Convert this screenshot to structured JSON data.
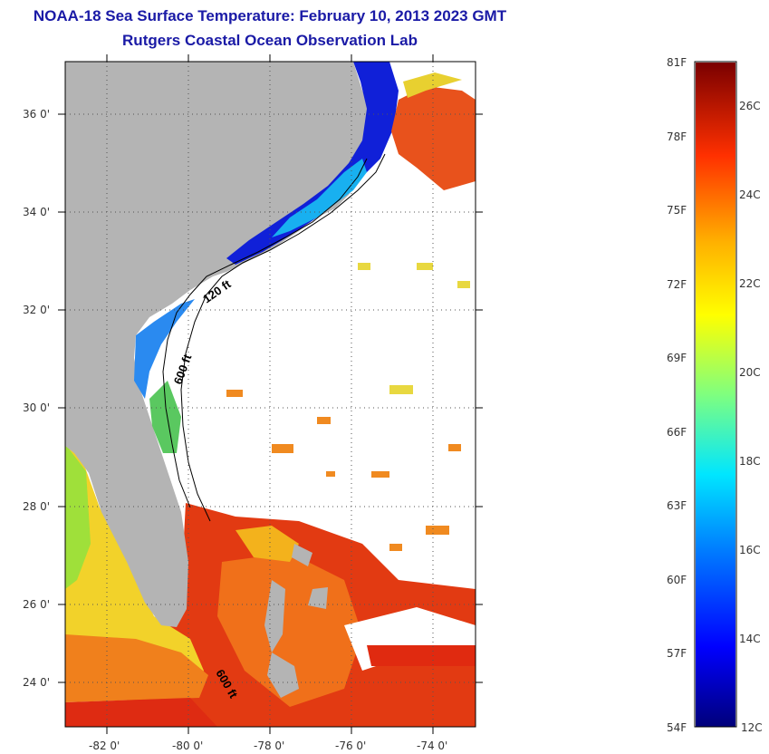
{
  "header": {
    "title": "NOAA-18 Sea Surface Temperature:  February 10, 2013 2023 GMT",
    "subtitle": "Rutgers Coastal Ocean Observation Lab"
  },
  "map": {
    "lat_labels": [
      "36 0'",
      "34 0'",
      "32 0'",
      "30 0'",
      "28 0'",
      "26 0'",
      "24 0'"
    ],
    "lon_labels": [
      "-82 0'",
      "-80 0'",
      "-78 0'",
      "-76 0'",
      "-74 0'"
    ],
    "contour_labels": [
      "120 ft",
      "600 ft",
      "600 ft"
    ]
  },
  "colorbar": {
    "f_labels": [
      "81F",
      "78F",
      "75F",
      "72F",
      "69F",
      "66F",
      "63F",
      "60F",
      "57F",
      "54F"
    ],
    "c_labels": [
      "26C",
      "24C",
      "22C",
      "20C",
      "18C",
      "16C",
      "14C",
      "12C"
    ]
  },
  "colors": {
    "title": "#1a1aa6",
    "land": "#b4b4b4",
    "ocean_missing": "#ffffff"
  }
}
